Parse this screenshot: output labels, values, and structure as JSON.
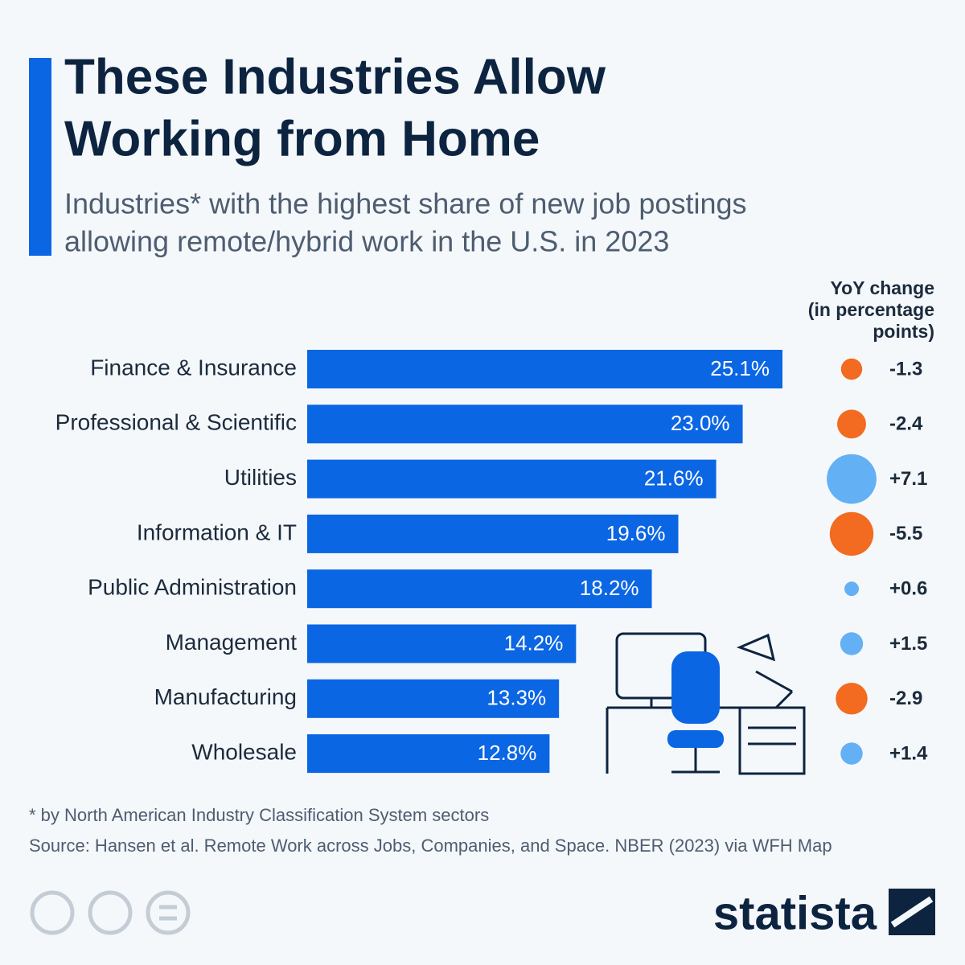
{
  "chart_data": {
    "type": "bar",
    "title": [
      "These Industries Allow",
      "Working from Home"
    ],
    "subtitle": [
      "Industries* with the highest share of new job postings",
      "allowing remote/hybrid work in the U.S. in 2023"
    ],
    "categories": [
      "Finance & Insurance",
      "Professional & Scientific",
      "Utilities",
      "Information & IT",
      "Public Administration",
      "Management",
      "Manufacturing",
      "Wholesale"
    ],
    "values": [
      25.1,
      23.0,
      21.6,
      19.6,
      18.2,
      14.2,
      13.3,
      12.8
    ],
    "value_labels": [
      "25.1%",
      "23.0%",
      "21.6%",
      "19.6%",
      "18.2%",
      "14.2%",
      "13.3%",
      "12.8%"
    ],
    "color": "#0b66e4",
    "yoy": {
      "title": [
        "YoY change",
        "(in percentage",
        "points)"
      ],
      "values": [
        -1.3,
        -2.4,
        7.1,
        -5.5,
        0.6,
        1.5,
        -2.9,
        1.4
      ],
      "value_labels": [
        "-1.3",
        "-2.4",
        "+7.1",
        "-5.5",
        "+0.6",
        "+1.5",
        "-2.9",
        "+1.4"
      ],
      "positive_color": "#64b0f4",
      "negative_color": "#f26b21"
    },
    "footnote": "* by North American Industry Classification System sectors",
    "source": "Source: Hansen et al. Remote Work across Jobs, Companies, and Space. NBER (2023) via WFH Map",
    "brand": "statista"
  }
}
